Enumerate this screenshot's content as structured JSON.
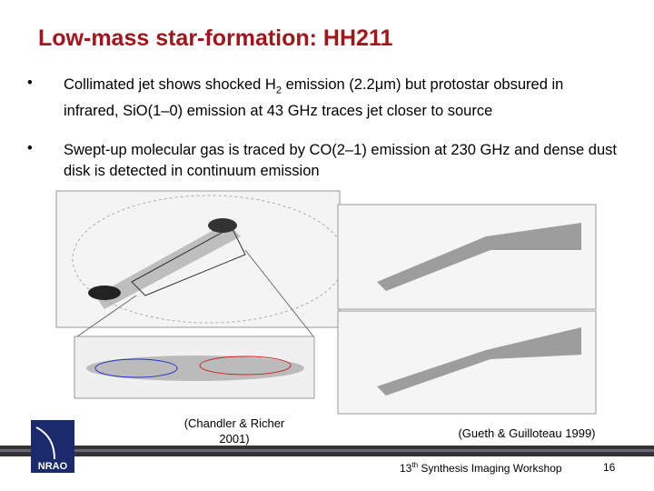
{
  "title": "Low-mass star-formation: HH211",
  "bullets": [
    [
      "Collimated jet shows shocked H",
      "2",
      " emission (2.2μm) but protostar obsured in infrared, SiO(1–0) emission at 43 GHz traces jet closer to source"
    ],
    [
      "Swept-up molecular gas is traced by CO(2–1) emission at 230 GHz and dense dust disk is detected in continuum emission"
    ]
  ],
  "captions": [
    "(Chandler & Richer 2001)",
    "(Gueth & Guilloteau 1999)"
  ],
  "logo": "NRAO",
  "footer": {
    "number": "13",
    "suffix": "th",
    "text": " Synthesis Imaging Workshop",
    "page": "16"
  }
}
